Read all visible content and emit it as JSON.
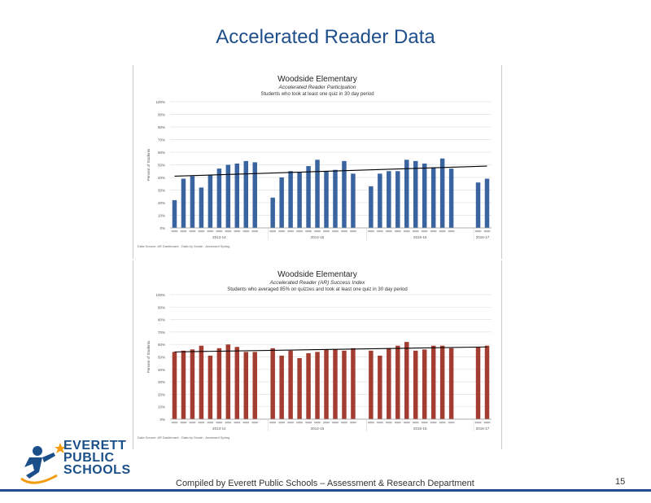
{
  "page": {
    "title": "Accelerated Reader Data",
    "footer": "Compiled  by Everett Public Schools – Assessment & Research Department",
    "page_number": "15"
  },
  "logo": {
    "line1": "EVERETT",
    "line2": "PUBLIC",
    "line3": "SCHOOLS"
  },
  "colors": {
    "title": "#1f4e8c",
    "series1": "#3a64a0",
    "series2": "#a33d32",
    "trend": "#000000"
  },
  "chart_data": [
    {
      "type": "bar",
      "title": "Woodside Elementary",
      "subtitle": "Accelerated Reader Participation",
      "subtitle2": "Students who took at least one quiz in 30 day period",
      "ylim": [
        0,
        100
      ],
      "yticks": [
        "0%",
        "10%",
        "20%",
        "30%",
        "40%",
        "50%",
        "60%",
        "70%",
        "80%",
        "90%",
        "100%"
      ],
      "ylabel": "Percent of Students",
      "groups": [
        "2013-14",
        "2014-15",
        "2015-16",
        "2016-17"
      ],
      "group_sizes": [
        11,
        11,
        12,
        2
      ],
      "values": [
        22,
        39,
        41,
        32,
        42,
        47,
        50,
        51,
        53,
        52,
        0,
        24,
        40,
        45,
        44,
        49,
        54,
        45,
        46,
        53,
        43,
        0,
        33,
        43,
        45,
        45,
        54,
        53,
        51,
        48,
        55,
        47,
        0,
        0,
        36,
        39
      ],
      "trend": [
        41,
        49
      ],
      "source": "Data Source: AR Dashboard - Data by Grade - Accessed Spring",
      "series": [
        {
          "values_ref": "values"
        }
      ]
    },
    {
      "type": "bar",
      "title": "Woodside Elementary",
      "subtitle": "Accelerated Reader (AR) Success Index",
      "subtitle2": "Students who averaged 85% on quizzes and took at least one quiz in 30 day period",
      "ylim": [
        0,
        100
      ],
      "yticks": [
        "0%",
        "10%",
        "20%",
        "30%",
        "40%",
        "50%",
        "60%",
        "70%",
        "80%",
        "90%",
        "100%"
      ],
      "ylabel": "Percent of Students",
      "groups": [
        "2013-14",
        "2014-15",
        "2015-16",
        "2016-17"
      ],
      "group_sizes": [
        11,
        11,
        12,
        2
      ],
      "values": [
        54,
        55,
        56,
        59,
        51,
        57,
        60,
        58,
        54,
        54,
        0,
        57,
        51,
        55,
        49,
        53,
        54,
        56,
        56,
        55,
        57,
        0,
        55,
        51,
        57,
        59,
        62,
        55,
        56,
        59,
        59,
        57,
        0,
        0,
        58,
        59
      ],
      "trend": [
        54,
        58
      ],
      "source": "Data Source: AR Dashboard - Data by Grade - Accessed Spring"
    }
  ]
}
